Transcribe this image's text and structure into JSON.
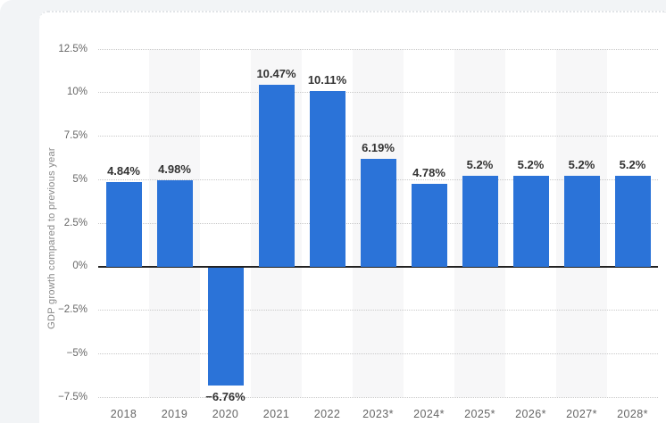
{
  "page": {
    "background": "#f2f4f6",
    "card_background": "#ffffff"
  },
  "chart_data": {
    "type": "bar",
    "title": "",
    "xlabel": "",
    "ylabel": "GDP growth compared to previous year",
    "categories": [
      "2018",
      "2019",
      "2020",
      "2021",
      "2022",
      "2023*",
      "2024*",
      "2025*",
      "2026*",
      "2027*",
      "2028*"
    ],
    "values": [
      4.84,
      4.98,
      -6.76,
      10.47,
      10.11,
      6.19,
      4.78,
      5.2,
      5.2,
      5.2,
      5.2
    ],
    "value_labels": [
      "4.84%",
      "4.98%",
      "−6.76%",
      "10.47%",
      "10.11%",
      "6.19%",
      "4.78%",
      "5.2%",
      "5.2%",
      "5.2%",
      "5.2%"
    ],
    "y_tick_labels": [
      "12.5%",
      "10%",
      "7.5%",
      "5%",
      "2.5%",
      "0%",
      "−2.5%",
      "−5%",
      "−7.5%"
    ],
    "y_tick_values": [
      12.5,
      10,
      7.5,
      5,
      2.5,
      0,
      -2.5,
      -5,
      -7.5
    ],
    "ylim": [
      -7.5,
      12.5
    ],
    "grid": "horizontal-dotted",
    "legend": "none",
    "colors": {
      "bar": "#2b73d8",
      "value_label": "#333333",
      "axis_label": "#666666",
      "axis_title": "#888888",
      "baseline": "#222222",
      "gridline": "#c9c9c9",
      "stripe": "#f7f7f8"
    }
  }
}
